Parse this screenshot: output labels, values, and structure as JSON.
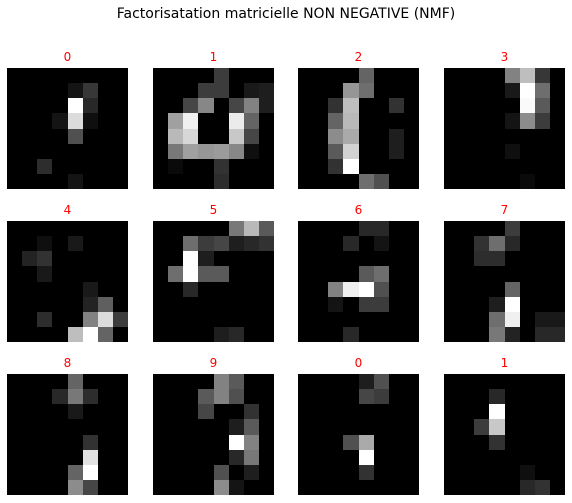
{
  "suptitle": "Factorisatation matricielle NON NEGATIVE (NMF)",
  "title_color": "#ff0000",
  "panels": [
    {
      "label": "0",
      "pixels": [
        [
          0,
          0,
          0,
          0,
          0,
          0,
          0,
          0
        ],
        [
          0,
          0,
          0,
          0,
          20,
          55,
          0,
          0
        ],
        [
          0,
          0,
          0,
          0,
          255,
          40,
          0,
          0
        ],
        [
          0,
          0,
          0,
          20,
          220,
          15,
          0,
          0
        ],
        [
          0,
          0,
          0,
          0,
          80,
          0,
          0,
          0
        ],
        [
          0,
          0,
          0,
          0,
          0,
          0,
          0,
          0
        ],
        [
          0,
          0,
          45,
          0,
          0,
          0,
          0,
          0
        ],
        [
          0,
          0,
          0,
          0,
          20,
          0,
          0,
          0
        ]
      ]
    },
    {
      "label": "1",
      "pixels": [
        [
          0,
          0,
          0,
          0,
          60,
          0,
          0,
          0
        ],
        [
          0,
          0,
          0,
          60,
          60,
          0,
          25,
          30
        ],
        [
          0,
          0,
          70,
          135,
          0,
          70,
          130,
          30
        ],
        [
          0,
          160,
          240,
          0,
          0,
          235,
          100,
          0
        ],
        [
          0,
          185,
          215,
          0,
          0,
          200,
          70,
          0
        ],
        [
          0,
          120,
          160,
          150,
          155,
          135,
          15,
          0
        ],
        [
          0,
          10,
          0,
          0,
          50,
          0,
          0,
          0
        ],
        [
          0,
          0,
          0,
          0,
          45,
          0,
          0,
          0
        ]
      ]
    },
    {
      "label": "2",
      "pixels": [
        [
          0,
          0,
          0,
          0,
          100,
          0,
          0,
          0
        ],
        [
          0,
          0,
          0,
          150,
          110,
          0,
          0,
          0
        ],
        [
          0,
          0,
          50,
          190,
          0,
          0,
          50,
          0
        ],
        [
          0,
          0,
          100,
          185,
          0,
          0,
          0,
          0
        ],
        [
          0,
          0,
          140,
          170,
          0,
          0,
          30,
          0
        ],
        [
          0,
          0,
          90,
          210,
          0,
          0,
          30,
          0
        ],
        [
          0,
          0,
          50,
          255,
          0,
          0,
          0,
          0
        ],
        [
          0,
          0,
          0,
          0,
          110,
          80,
          0,
          0
        ]
      ]
    },
    {
      "label": "3",
      "pixels": [
        [
          0,
          0,
          0,
          0,
          130,
          190,
          55,
          0
        ],
        [
          0,
          0,
          0,
          0,
          25,
          255,
          110,
          0
        ],
        [
          0,
          0,
          0,
          0,
          0,
          250,
          90,
          0
        ],
        [
          0,
          0,
          0,
          0,
          20,
          140,
          60,
          0
        ],
        [
          0,
          0,
          0,
          0,
          0,
          0,
          0,
          0
        ],
        [
          0,
          0,
          0,
          0,
          15,
          0,
          0,
          0
        ],
        [
          0,
          0,
          0,
          0,
          0,
          0,
          0,
          0
        ],
        [
          0,
          0,
          0,
          0,
          0,
          10,
          0,
          0
        ]
      ]
    },
    {
      "label": "4",
      "pixels": [
        [
          0,
          0,
          0,
          0,
          0,
          0,
          0,
          0
        ],
        [
          0,
          0,
          15,
          0,
          25,
          0,
          0,
          0
        ],
        [
          0,
          35,
          50,
          0,
          0,
          0,
          0,
          0
        ],
        [
          0,
          0,
          25,
          0,
          0,
          0,
          0,
          0
        ],
        [
          0,
          0,
          0,
          0,
          0,
          25,
          0,
          0
        ],
        [
          0,
          0,
          0,
          0,
          0,
          35,
          95,
          0
        ],
        [
          0,
          0,
          45,
          0,
          0,
          130,
          220,
          60
        ],
        [
          0,
          0,
          0,
          0,
          190,
          255,
          100,
          0
        ]
      ]
    },
    {
      "label": "5",
      "pixels": [
        [
          0,
          0,
          0,
          0,
          0,
          120,
          185,
          90
        ],
        [
          0,
          0,
          110,
          60,
          70,
          30,
          40,
          50
        ],
        [
          0,
          0,
          255,
          30,
          0,
          0,
          0,
          0
        ],
        [
          0,
          110,
          255,
          90,
          90,
          0,
          0,
          0
        ],
        [
          0,
          0,
          40,
          0,
          0,
          0,
          0,
          0
        ],
        [
          0,
          0,
          0,
          0,
          0,
          0,
          0,
          0
        ],
        [
          0,
          0,
          0,
          0,
          0,
          0,
          0,
          0
        ],
        [
          0,
          0,
          0,
          0,
          30,
          40,
          0,
          0
        ]
      ]
    },
    {
      "label": "6",
      "pixels": [
        [
          0,
          0,
          0,
          0,
          40,
          40,
          0,
          0
        ],
        [
          0,
          0,
          0,
          40,
          0,
          20,
          0,
          0
        ],
        [
          0,
          0,
          0,
          0,
          0,
          0,
          0,
          0
        ],
        [
          0,
          0,
          0,
          0,
          90,
          110,
          0,
          0
        ],
        [
          0,
          0,
          130,
          240,
          255,
          80,
          0,
          0
        ],
        [
          0,
          0,
          20,
          0,
          60,
          60,
          0,
          0
        ],
        [
          0,
          0,
          0,
          0,
          0,
          0,
          0,
          0
        ],
        [
          0,
          0,
          0,
          40,
          0,
          0,
          0,
          0
        ]
      ]
    },
    {
      "label": "7",
      "pixels": [
        [
          0,
          0,
          0,
          0,
          60,
          0,
          0,
          0
        ],
        [
          0,
          0,
          50,
          110,
          40,
          0,
          0,
          0
        ],
        [
          0,
          0,
          45,
          45,
          0,
          0,
          0,
          0
        ],
        [
          0,
          0,
          0,
          0,
          0,
          0,
          0,
          0
        ],
        [
          0,
          0,
          0,
          0,
          100,
          0,
          0,
          0
        ],
        [
          0,
          0,
          0,
          30,
          255,
          0,
          0,
          0
        ],
        [
          0,
          0,
          0,
          110,
          240,
          0,
          25,
          25
        ],
        [
          0,
          0,
          0,
          120,
          35,
          0,
          40,
          40
        ]
      ]
    },
    {
      "label": "8",
      "pixels": [
        [
          0,
          0,
          0,
          0,
          100,
          0,
          0,
          0
        ],
        [
          0,
          0,
          0,
          40,
          120,
          45,
          0,
          0
        ],
        [
          0,
          0,
          0,
          0,
          25,
          0,
          0,
          0
        ],
        [
          0,
          0,
          0,
          0,
          0,
          0,
          0,
          0
        ],
        [
          0,
          0,
          0,
          0,
          0,
          50,
          0,
          0
        ],
        [
          0,
          0,
          0,
          0,
          0,
          225,
          0,
          0
        ],
        [
          0,
          0,
          0,
          0,
          100,
          255,
          0,
          0
        ],
        [
          0,
          0,
          0,
          0,
          140,
          70,
          0,
          0
        ]
      ]
    },
    {
      "label": "9",
      "pixels": [
        [
          0,
          0,
          0,
          0,
          130,
          90,
          0,
          0
        ],
        [
          0,
          0,
          0,
          90,
          130,
          80,
          0,
          0
        ],
        [
          0,
          0,
          0,
          70,
          0,
          0,
          50,
          0
        ],
        [
          0,
          0,
          0,
          0,
          0,
          30,
          90,
          0
        ],
        [
          0,
          0,
          0,
          0,
          0,
          255,
          130,
          0
        ],
        [
          0,
          0,
          0,
          0,
          0,
          40,
          120,
          0
        ],
        [
          0,
          0,
          0,
          0,
          80,
          0,
          30,
          0
        ],
        [
          0,
          0,
          0,
          0,
          140,
          20,
          0,
          0
        ]
      ]
    },
    {
      "label": "0",
      "pixels": [
        [
          0,
          0,
          0,
          0,
          30,
          80,
          0,
          0
        ],
        [
          0,
          0,
          0,
          0,
          70,
          60,
          0,
          0
        ],
        [
          0,
          0,
          0,
          0,
          0,
          0,
          0,
          0
        ],
        [
          0,
          0,
          0,
          0,
          0,
          0,
          0,
          0
        ],
        [
          0,
          0,
          0,
          80,
          170,
          0,
          0,
          0
        ],
        [
          0,
          0,
          0,
          0,
          255,
          0,
          0,
          0
        ],
        [
          0,
          0,
          0,
          0,
          50,
          0,
          0,
          0
        ],
        [
          0,
          0,
          0,
          0,
          0,
          0,
          0,
          0
        ]
      ]
    },
    {
      "label": "1",
      "pixels": [
        [
          0,
          0,
          0,
          0,
          0,
          0,
          0,
          0
        ],
        [
          0,
          0,
          0,
          40,
          0,
          0,
          0,
          0
        ],
        [
          0,
          0,
          0,
          255,
          0,
          0,
          0,
          0
        ],
        [
          0,
          0,
          60,
          200,
          0,
          0,
          0,
          0
        ],
        [
          0,
          0,
          0,
          50,
          0,
          0,
          0,
          0
        ],
        [
          0,
          0,
          0,
          0,
          0,
          0,
          0,
          0
        ],
        [
          0,
          0,
          0,
          0,
          0,
          15,
          0,
          0
        ],
        [
          0,
          0,
          0,
          0,
          0,
          40,
          50,
          0
        ]
      ]
    }
  ]
}
